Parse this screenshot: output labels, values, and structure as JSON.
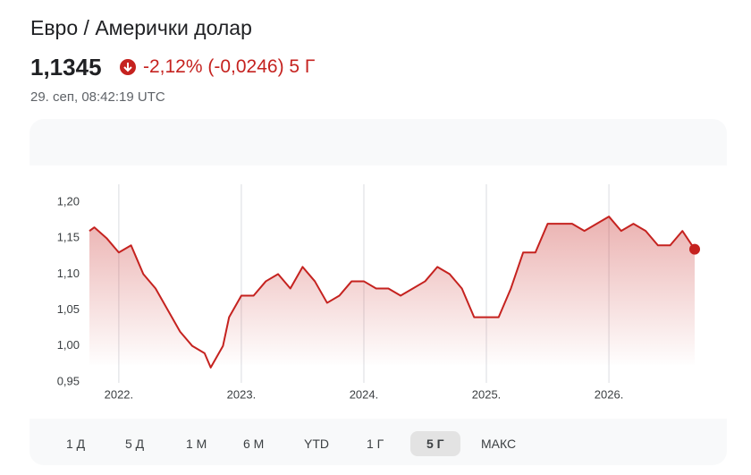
{
  "header": {
    "title": "Евро / Амерички долар",
    "price": "1,1345",
    "change": "-2,12% (-0,0246) 5 Г",
    "timestamp": "29. сеп, 08:42:19 UTC"
  },
  "chart_data": {
    "type": "line",
    "x": [
      2021.76,
      2021.8,
      2021.9,
      2022.0,
      2022.1,
      2022.15,
      2022.2,
      2022.3,
      2022.4,
      2022.5,
      2022.6,
      2022.7,
      2022.75,
      2022.85,
      2022.9,
      2023.0,
      2023.1,
      2023.2,
      2023.3,
      2023.4,
      2023.5,
      2023.6,
      2023.7,
      2023.8,
      2023.9,
      2024.0,
      2024.1,
      2024.2,
      2024.3,
      2024.4,
      2024.5,
      2024.6,
      2024.7,
      2024.8,
      2024.9,
      2025.0,
      2025.1,
      2025.2,
      2025.3,
      2025.4,
      2025.5,
      2025.6,
      2025.7,
      2025.8,
      2025.9,
      2026.0,
      2026.1,
      2026.2,
      2026.3,
      2026.4,
      2026.5,
      2026.6,
      2026.7
    ],
    "series": [
      {
        "color": "#c5221f",
        "values": [
          1.16,
          1.165,
          1.15,
          1.13,
          1.14,
          1.12,
          1.1,
          1.08,
          1.05,
          1.02,
          1.0,
          0.99,
          0.97,
          1.0,
          1.04,
          1.07,
          1.07,
          1.09,
          1.1,
          1.08,
          1.11,
          1.09,
          1.06,
          1.07,
          1.09,
          1.09,
          1.08,
          1.08,
          1.07,
          1.08,
          1.09,
          1.11,
          1.1,
          1.08,
          1.04,
          1.04,
          1.04,
          1.08,
          1.13,
          1.13,
          1.17,
          1.17,
          1.17,
          1.16,
          1.17,
          1.18,
          1.16,
          1.17,
          1.16,
          1.14,
          1.14,
          1.16,
          1.1345
        ]
      }
    ],
    "xlim": [
      2021.76,
      2026.7
    ],
    "xticks": [
      {
        "value": 2022,
        "label": "2022."
      },
      {
        "value": 2023,
        "label": "2023."
      },
      {
        "value": 2024,
        "label": "2024."
      },
      {
        "value": 2025,
        "label": "2025."
      },
      {
        "value": 2026,
        "label": "2026."
      }
    ],
    "ylim": [
      0.95,
      1.2
    ],
    "yticks": [
      {
        "value": 0.95,
        "label": "0,95"
      },
      {
        "value": 1.0,
        "label": "1,00"
      },
      {
        "value": 1.05,
        "label": "1,05"
      },
      {
        "value": 1.1,
        "label": "1,10"
      },
      {
        "value": 1.15,
        "label": "1,15"
      },
      {
        "value": 1.2,
        "label": "1,20"
      }
    ],
    "grid": true
  },
  "ranges": [
    "1 Д",
    "5 Д",
    "1 М",
    "6 М",
    "YTD",
    "1 Г",
    "5 Г",
    "МАКС"
  ],
  "selected_range": "5 Г"
}
